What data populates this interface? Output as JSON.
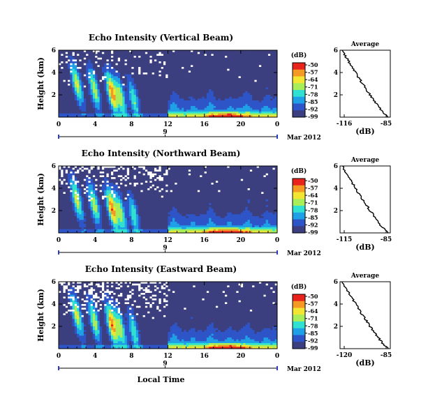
{
  "chart_data": [
    {
      "type": "heatmap",
      "title": "Echo Intensity (Vertical Beam)",
      "ylabel": "Height (km)",
      "xlabel": "",
      "x_ticks": [
        "0",
        "4",
        "8",
        "12",
        "16",
        "20",
        "0"
      ],
      "y_ticks": [
        "6",
        "4",
        "2"
      ],
      "day_marker": "9",
      "date_label": "Mar 2012",
      "x_range_hours": [
        0,
        24
      ],
      "y_range_km": [
        0,
        6
      ],
      "colorbar": {
        "unit": "(dB)",
        "levels": [
          "-50",
          "-57",
          "-64",
          "-71",
          "-78",
          "-85",
          "-92",
          "-99"
        ]
      },
      "blank_fraction": 0.35,
      "profile": {
        "title": "Average",
        "xlabel": "(dB)",
        "x_ticks": [
          "-116",
          "-85"
        ],
        "y_ticks": [
          "6",
          "4",
          "2"
        ],
        "xlim": [
          -116,
          -85
        ]
      }
    },
    {
      "type": "heatmap",
      "title": "Echo Intensity (Northward Beam)",
      "ylabel": "Height (km)",
      "xlabel": "",
      "x_ticks": [
        "0",
        "4",
        "8",
        "12",
        "16",
        "20",
        "0"
      ],
      "y_ticks": [
        "6",
        "4",
        "2"
      ],
      "day_marker": "9",
      "date_label": "Mar 2012",
      "x_range_hours": [
        0,
        24
      ],
      "y_range_km": [
        0,
        6
      ],
      "colorbar": {
        "unit": "(dB)",
        "levels": [
          "-50",
          "-57",
          "-64",
          "-71",
          "-78",
          "-85",
          "-92",
          "-99"
        ]
      },
      "blank_fraction": 0.55,
      "profile": {
        "title": "Average",
        "xlabel": "(dB)",
        "x_ticks": [
          "-115",
          "-85"
        ],
        "y_ticks": [
          "6",
          "4",
          "2"
        ],
        "xlim": [
          -115,
          -85
        ]
      }
    },
    {
      "type": "heatmap",
      "title": "Echo Intensity (Eastward Beam)",
      "ylabel": "Height (km)",
      "xlabel": "Local Time",
      "x_ticks": [
        "0",
        "4",
        "8",
        "12",
        "16",
        "20",
        "0"
      ],
      "y_ticks": [
        "6",
        "4",
        "2"
      ],
      "day_marker": "9",
      "date_label": "Mar 2012",
      "x_range_hours": [
        0,
        24
      ],
      "y_range_km": [
        0,
        6
      ],
      "colorbar": {
        "unit": "(dB)",
        "levels": [
          "-50",
          "-57",
          "-64",
          "-71",
          "-78",
          "-85",
          "-92",
          "-99"
        ]
      },
      "blank_fraction": 0.8,
      "profile": {
        "title": "Average",
        "xlabel": "(dB)",
        "x_ticks": [
          "-120",
          "-85"
        ],
        "y_ticks": [
          "6",
          "4",
          "2"
        ],
        "xlim": [
          -120,
          -85
        ]
      }
    }
  ],
  "colors": {
    "background_field": "#3c3f7f",
    "blank": "#ffffff",
    "scale": [
      "#3c3f7f",
      "#2e55c8",
      "#1fa0e6",
      "#30e0d0",
      "#a8ee5a",
      "#f2e632",
      "#f49a24",
      "#e8231c"
    ]
  }
}
